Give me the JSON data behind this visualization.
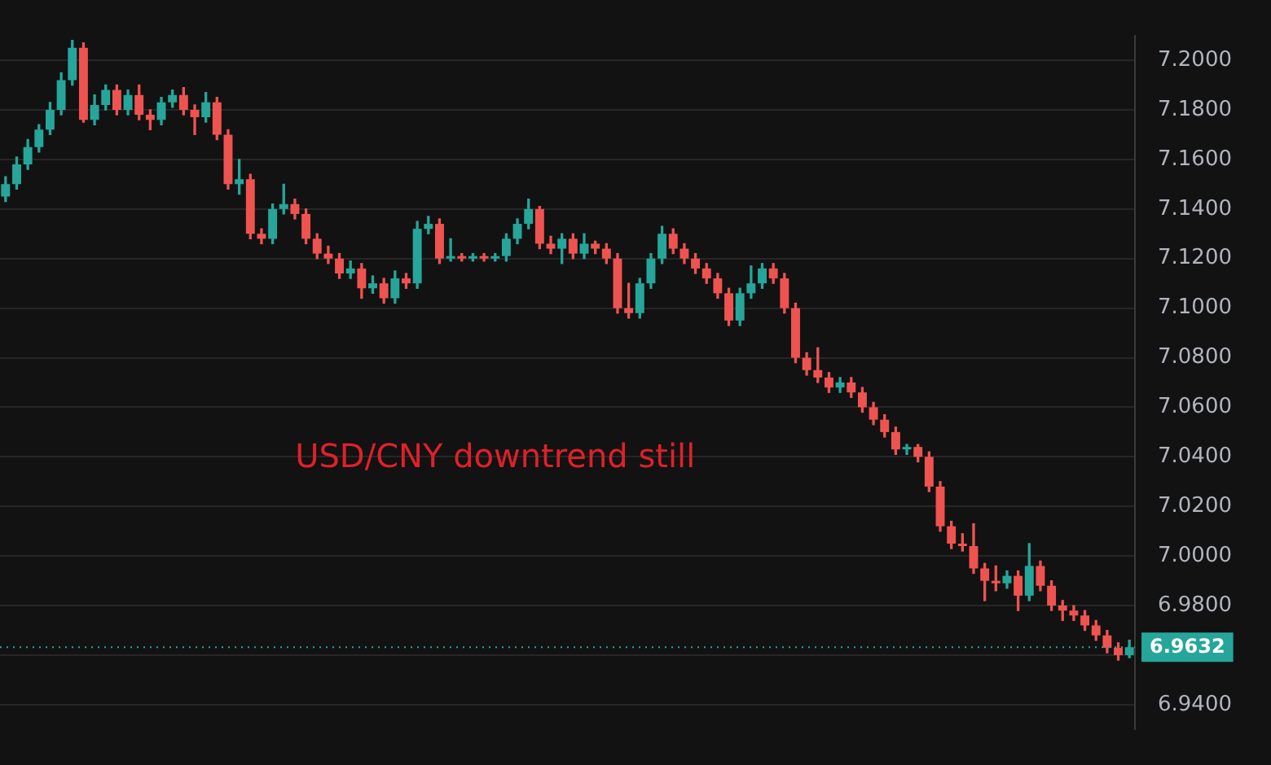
{
  "chart_data": {
    "type": "candlestick",
    "categories": [
      null,
      null,
      null,
      null,
      null,
      null,
      null,
      null,
      null,
      null,
      null,
      null,
      null,
      null,
      null,
      null,
      null,
      null,
      null,
      null,
      null,
      null,
      null,
      null,
      null,
      null,
      null,
      null,
      null,
      null,
      null,
      null,
      null,
      null,
      null,
      null,
      null,
      null,
      null,
      null,
      null,
      null,
      null,
      null,
      null,
      null,
      null,
      null,
      null,
      null,
      null,
      null,
      null,
      null,
      null,
      null,
      null,
      null,
      null,
      null,
      null,
      null,
      null,
      null,
      null,
      null,
      null,
      null,
      null,
      null,
      null,
      null,
      null,
      null,
      null,
      null,
      null,
      null,
      null,
      null,
      null,
      null,
      null,
      null,
      null,
      null,
      null,
      null,
      null,
      null,
      null,
      null,
      null,
      null,
      null,
      null,
      null,
      null,
      null,
      null,
      null,
      null
    ],
    "ohlc": [
      [
        7.145,
        7.153,
        7.143,
        7.15
      ],
      [
        7.15,
        7.161,
        7.148,
        7.158
      ],
      [
        7.158,
        7.168,
        7.156,
        7.165
      ],
      [
        7.165,
        7.174,
        7.163,
        7.172
      ],
      [
        7.172,
        7.183,
        7.17,
        7.18
      ],
      [
        7.18,
        7.195,
        7.178,
        7.192
      ],
      [
        7.192,
        7.208,
        7.19,
        7.205
      ],
      [
        7.205,
        7.207,
        7.175,
        7.176
      ],
      [
        7.176,
        7.186,
        7.174,
        7.182
      ],
      [
        7.182,
        7.19,
        7.18,
        7.188
      ],
      [
        7.188,
        7.19,
        7.178,
        7.18
      ],
      [
        7.18,
        7.188,
        7.178,
        7.186
      ],
      [
        7.186,
        7.19,
        7.176,
        7.178
      ],
      [
        7.178,
        7.18,
        7.172,
        7.176
      ],
      [
        7.176,
        7.185,
        7.174,
        7.183
      ],
      [
        7.183,
        7.188,
        7.181,
        7.186
      ],
      [
        7.186,
        7.189,
        7.178,
        7.18
      ],
      [
        7.18,
        7.182,
        7.17,
        7.177
      ],
      [
        7.177,
        7.187,
        7.175,
        7.183
      ],
      [
        7.183,
        7.185,
        7.168,
        7.17
      ],
      [
        7.17,
        7.172,
        7.148,
        7.15
      ],
      [
        7.15,
        7.16,
        7.146,
        7.152
      ],
      [
        7.152,
        7.154,
        7.128,
        7.13
      ],
      [
        7.13,
        7.132,
        7.126,
        7.128
      ],
      [
        7.128,
        7.142,
        7.126,
        7.14
      ],
      [
        7.14,
        7.15,
        7.138,
        7.142
      ],
      [
        7.142,
        7.144,
        7.136,
        7.138
      ],
      [
        7.138,
        7.14,
        7.126,
        7.128
      ],
      [
        7.128,
        7.13,
        7.12,
        7.122
      ],
      [
        7.122,
        7.125,
        7.118,
        7.12
      ],
      [
        7.12,
        7.122,
        7.112,
        7.114
      ],
      [
        7.114,
        7.119,
        7.112,
        7.116
      ],
      [
        7.116,
        7.118,
        7.104,
        7.108
      ],
      [
        7.108,
        7.113,
        7.106,
        7.11
      ],
      [
        7.11,
        7.112,
        7.102,
        7.104
      ],
      [
        7.104,
        7.115,
        7.102,
        7.112
      ],
      [
        7.112,
        7.114,
        7.108,
        7.11
      ],
      [
        7.11,
        7.135,
        7.108,
        7.132
      ],
      [
        7.132,
        7.137,
        7.13,
        7.134
      ],
      [
        7.134,
        7.136,
        7.118,
        7.12
      ],
      [
        7.12,
        7.128,
        7.119,
        7.121
      ],
      [
        7.121,
        7.122,
        7.119,
        7.12
      ],
      [
        7.12,
        7.122,
        7.119,
        7.121
      ],
      [
        7.121,
        7.122,
        7.119,
        7.12
      ],
      [
        7.12,
        7.122,
        7.119,
        7.121
      ],
      [
        7.121,
        7.13,
        7.119,
        7.128
      ],
      [
        7.128,
        7.136,
        7.126,
        7.134
      ],
      [
        7.134,
        7.144,
        7.132,
        7.14
      ],
      [
        7.14,
        7.141,
        7.124,
        7.126
      ],
      [
        7.126,
        7.129,
        7.122,
        7.124
      ],
      [
        7.124,
        7.13,
        7.118,
        7.128
      ],
      [
        7.128,
        7.13,
        7.12,
        7.122
      ],
      [
        7.122,
        7.13,
        7.12,
        7.126
      ],
      [
        7.126,
        7.127,
        7.122,
        7.124
      ],
      [
        7.124,
        7.126,
        7.118,
        7.12
      ],
      [
        7.12,
        7.122,
        7.098,
        7.1
      ],
      [
        7.1,
        7.11,
        7.096,
        7.098
      ],
      [
        7.098,
        7.112,
        7.096,
        7.11
      ],
      [
        7.11,
        7.122,
        7.108,
        7.12
      ],
      [
        7.12,
        7.133,
        7.118,
        7.13
      ],
      [
        7.13,
        7.132,
        7.122,
        7.124
      ],
      [
        7.124,
        7.126,
        7.118,
        7.12
      ],
      [
        7.12,
        7.122,
        7.114,
        7.116
      ],
      [
        7.116,
        7.118,
        7.11,
        7.112
      ],
      [
        7.112,
        7.114,
        7.104,
        7.106
      ],
      [
        7.106,
        7.108,
        7.093,
        7.095
      ],
      [
        7.095,
        7.108,
        7.093,
        7.106
      ],
      [
        7.106,
        7.117,
        7.104,
        7.11
      ],
      [
        7.11,
        7.118,
        7.108,
        7.116
      ],
      [
        7.116,
        7.118,
        7.11,
        7.112
      ],
      [
        7.112,
        7.114,
        7.098,
        7.1
      ],
      [
        7.1,
        7.102,
        7.078,
        7.08
      ],
      [
        7.08,
        7.082,
        7.073,
        7.075
      ],
      [
        7.075,
        7.084,
        7.07,
        7.072
      ],
      [
        7.072,
        7.074,
        7.066,
        7.068
      ],
      [
        7.068,
        7.072,
        7.066,
        7.07
      ],
      [
        7.07,
        7.072,
        7.064,
        7.066
      ],
      [
        7.066,
        7.068,
        7.058,
        7.06
      ],
      [
        7.06,
        7.062,
        7.053,
        7.055
      ],
      [
        7.055,
        7.057,
        7.048,
        7.05
      ],
      [
        7.05,
        7.052,
        7.041,
        7.043
      ],
      [
        7.043,
        7.045,
        7.041,
        7.044
      ],
      [
        7.044,
        7.045,
        7.038,
        7.04
      ],
      [
        7.04,
        7.042,
        7.026,
        7.028
      ],
      [
        7.028,
        7.03,
        7.01,
        7.012
      ],
      [
        7.012,
        7.014,
        7.003,
        7.005
      ],
      [
        7.005,
        7.009,
        7.002,
        7.004
      ],
      [
        7.004,
        7.013,
        6.993,
        6.995
      ],
      [
        6.995,
        6.997,
        6.982,
        6.99
      ],
      [
        6.99,
        6.996,
        6.986,
        6.989
      ],
      [
        6.989,
        6.994,
        6.987,
        6.992
      ],
      [
        6.992,
        6.994,
        6.978,
        6.984
      ],
      [
        6.984,
        7.005,
        6.982,
        6.996
      ],
      [
        6.996,
        6.998,
        6.986,
        6.988
      ],
      [
        6.988,
        6.99,
        6.978,
        6.98
      ],
      [
        6.98,
        6.982,
        6.974,
        6.978
      ],
      [
        6.978,
        6.98,
        6.974,
        6.976
      ],
      [
        6.976,
        6.978,
        6.97,
        6.972
      ],
      [
        6.972,
        6.974,
        6.966,
        6.968
      ],
      [
        6.968,
        6.97,
        6.961,
        6.963
      ],
      [
        6.963,
        6.965,
        6.958,
        6.96
      ],
      [
        6.96,
        6.966,
        6.959,
        6.9632
      ]
    ],
    "ylim": [
      6.93,
      7.21
    ],
    "yticks": [
      {
        "value": 6.94,
        "label": "6.9400"
      },
      {
        "value": 6.96,
        "label": null
      },
      {
        "value": 6.98,
        "label": "6.9800"
      },
      {
        "value": 7.0,
        "label": "7.0000"
      },
      {
        "value": 7.02,
        "label": "7.0200"
      },
      {
        "value": 7.04,
        "label": "7.0400"
      },
      {
        "value": 7.06,
        "label": "7.0600"
      },
      {
        "value": 7.08,
        "label": "7.0800"
      },
      {
        "value": 7.1,
        "label": "7.1000"
      },
      {
        "value": 7.12,
        "label": "7.1200"
      },
      {
        "value": 7.14,
        "label": "7.1400"
      },
      {
        "value": 7.16,
        "label": "7.1600"
      },
      {
        "value": 7.18,
        "label": "7.1800"
      },
      {
        "value": 7.2,
        "label": "7.2000"
      }
    ],
    "grid": "y",
    "tick_labels": "y",
    "ref_lines": [
      {
        "axis": "y",
        "value": 6.9632,
        "label": "6.9632",
        "color": "#26a69a",
        "line_style": "dotted"
      }
    ],
    "annotations": [
      "USD/CNY downtrend still"
    ]
  }
}
